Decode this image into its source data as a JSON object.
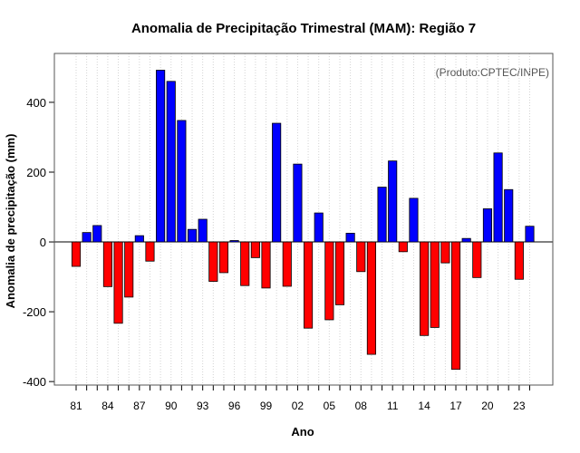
{
  "chart_data": {
    "type": "bar",
    "title": "Anomalia de Precipitação Trimestral (MAM): Região 7",
    "xlabel": "Ano",
    "ylabel": "Anomalia de precipitação (mm)",
    "annotation": "(Produto:CPTEC/INPE)",
    "ylim": [
      -410,
      540
    ],
    "yticks": [
      -400,
      -200,
      0,
      200,
      400
    ],
    "grid": "vertical-dotted",
    "colors": {
      "positive": "#0000ff",
      "negative": "#ff0000",
      "grid": "#d3d3d3",
      "axis": "#000000"
    },
    "xtick_labels": [
      "81",
      "84",
      "87",
      "90",
      "93",
      "96",
      "99",
      "02",
      "05",
      "08",
      "11",
      "14",
      "17",
      "20",
      "23"
    ],
    "categories": [
      "1981",
      "1982",
      "1983",
      "1984",
      "1985",
      "1986",
      "1987",
      "1988",
      "1989",
      "1990",
      "1991",
      "1992",
      "1993",
      "1994",
      "1995",
      "1996",
      "1997",
      "1998",
      "1999",
      "2000",
      "2001",
      "2002",
      "2003",
      "2004",
      "2005",
      "2006",
      "2007",
      "2008",
      "2009",
      "2010",
      "2011",
      "2012",
      "2013",
      "2014",
      "2015",
      "2016",
      "2017",
      "2018",
      "2019",
      "2020",
      "2021",
      "2022",
      "2023",
      "2024"
    ],
    "values": [
      -70,
      27,
      47,
      -128,
      -233,
      -158,
      18,
      -55,
      492,
      460,
      348,
      36,
      65,
      -113,
      -88,
      4,
      -125,
      -45,
      -132,
      340,
      -127,
      223,
      -247,
      83,
      -223,
      -180,
      25,
      -85,
      -322,
      157,
      232,
      -28,
      125,
      -268,
      -245,
      -60,
      -365,
      10,
      -102,
      95,
      255,
      150,
      -107,
      45
    ]
  }
}
